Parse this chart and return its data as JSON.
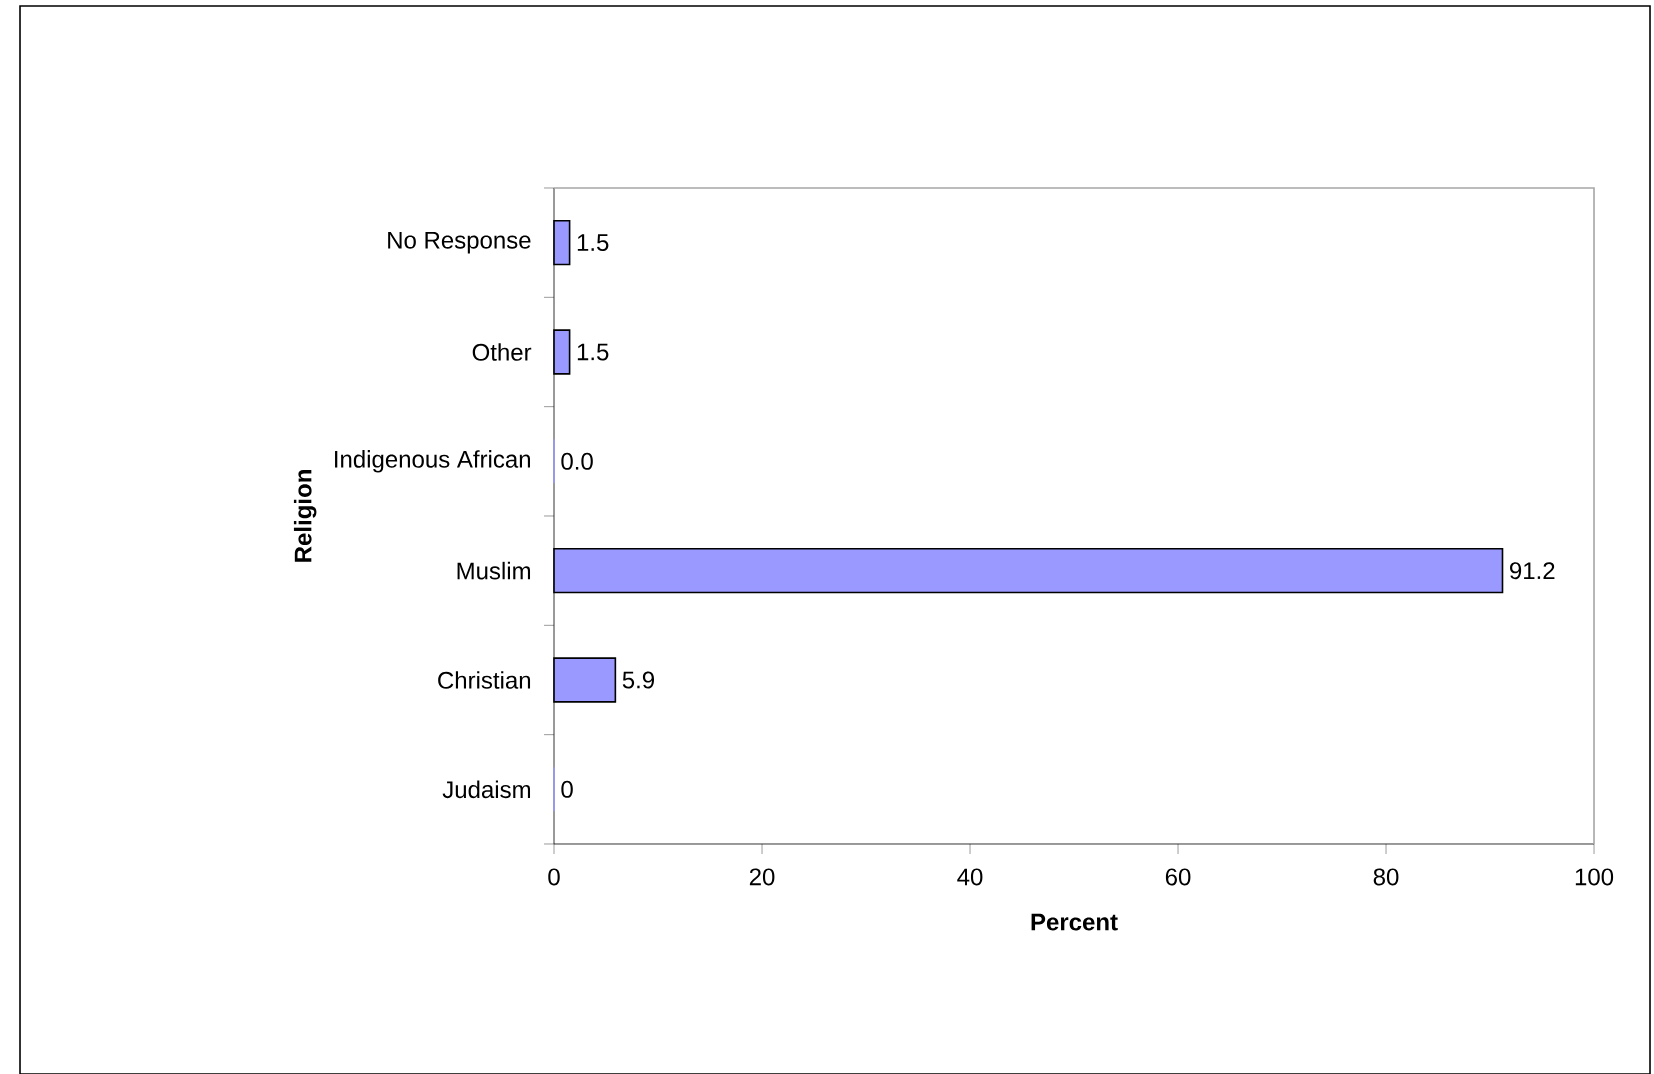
{
  "chart_data": {
    "type": "bar",
    "orientation": "horizontal",
    "xlabel": "Percent",
    "ylabel": "Religion",
    "categories": [
      "No Response",
      "Other",
      "Indigenous African",
      "Muslim",
      "Christian",
      "Judaism"
    ],
    "values": [
      1.5,
      1.5,
      0,
      91.2,
      5.9,
      0
    ],
    "value_labels": [
      "1.5",
      "1.5",
      "0.0",
      "91.2",
      "5.9",
      "0"
    ],
    "color": "#9999ff",
    "xlim": [
      0,
      100
    ],
    "xticks": [
      0,
      20,
      40,
      60,
      80,
      100
    ],
    "grid": false
  }
}
